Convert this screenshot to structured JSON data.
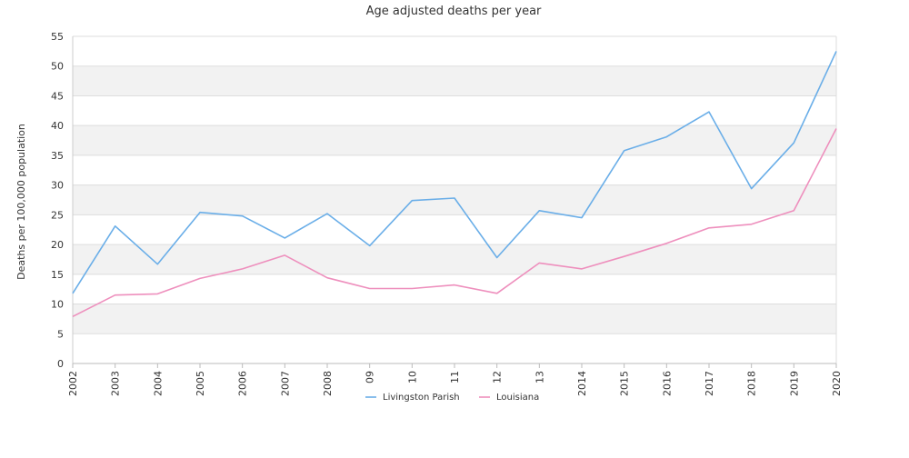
{
  "chart_data": {
    "type": "line",
    "title": "Age adjusted deaths per year",
    "xlabel": "",
    "ylabel": "Deaths per 100,000 population",
    "categories": [
      "2002",
      "2003",
      "2004",
      "2005",
      "2006",
      "2007",
      "2008",
      "09",
      "10",
      "11",
      "12",
      "13",
      "2014",
      "2015",
      "2016",
      "2017",
      "2018",
      "2019",
      "2020"
    ],
    "ylim": [
      0,
      55
    ],
    "yticks": [
      0,
      5,
      10,
      15,
      20,
      25,
      30,
      35,
      40,
      45,
      50,
      55
    ],
    "grid": true,
    "legend_position": "bottom",
    "series": [
      {
        "name": "Livingston Parish",
        "color": "#6aaee8",
        "values": [
          11.8,
          23.1,
          16.7,
          25.4,
          24.8,
          21.1,
          25.2,
          19.8,
          27.4,
          27.8,
          17.8,
          25.7,
          24.5,
          35.8,
          38.1,
          42.3,
          29.4,
          37.1,
          52.5
        ]
      },
      {
        "name": "Louisiana",
        "color": "#ee8fbd",
        "values": [
          7.9,
          11.5,
          11.7,
          14.3,
          15.9,
          18.2,
          14.4,
          12.6,
          12.6,
          13.2,
          11.8,
          16.9,
          15.9,
          18.0,
          20.2,
          22.8,
          23.4,
          25.7,
          39.5
        ]
      }
    ]
  }
}
